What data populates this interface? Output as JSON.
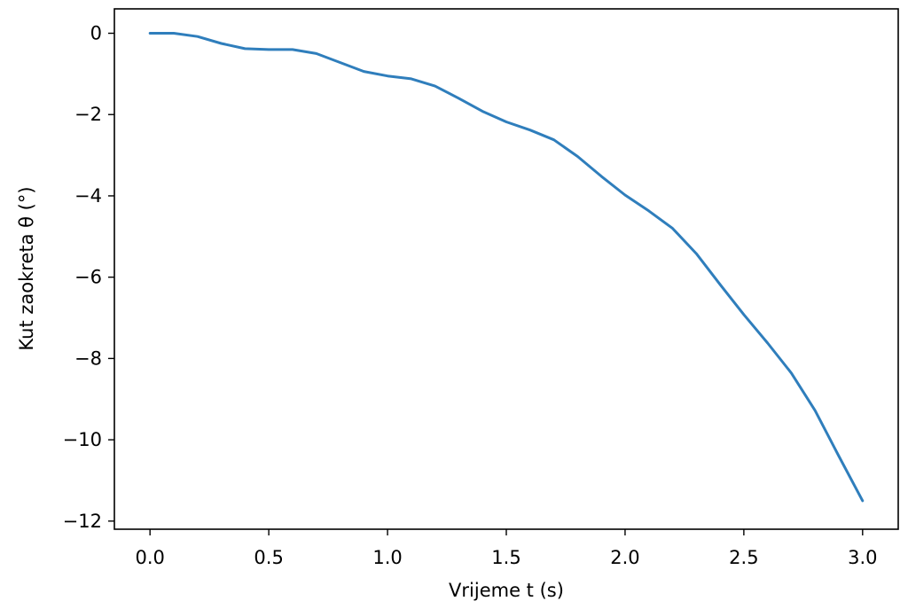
{
  "chart_data": {
    "type": "line",
    "title": "",
    "xlabel": "Vrijeme t (s)",
    "ylabel": "Kut zaokreta θ (°)",
    "xlim": [
      -0.15,
      3.15
    ],
    "ylim": [
      -12.2,
      0.6
    ],
    "grid": false,
    "legend": "none",
    "line_color": "#2f7ebc",
    "xticks": [
      0.0,
      0.5,
      1.0,
      1.5,
      2.0,
      2.5,
      3.0
    ],
    "xtick_labels": [
      "0.0",
      "0.5",
      "1.0",
      "1.5",
      "2.0",
      "2.5",
      "3.0"
    ],
    "yticks": [
      0,
      -2,
      -4,
      -6,
      -8,
      -10,
      -12
    ],
    "ytick_labels": [
      "0",
      "−2",
      "−4",
      "−6",
      "−8",
      "−10",
      "−12"
    ],
    "series": [
      {
        "x": [
          0.0,
          0.1,
          0.2,
          0.3,
          0.4,
          0.5,
          0.6,
          0.7,
          0.8,
          0.9,
          1.0,
          1.1,
          1.2,
          1.3,
          1.4,
          1.5,
          1.6,
          1.7,
          1.8,
          1.9,
          2.0,
          2.1,
          2.2,
          2.3,
          2.4,
          2.5,
          2.6,
          2.7,
          2.8,
          2.9,
          3.0
        ],
        "y": [
          0.0,
          0.0,
          -0.08,
          -0.25,
          -0.38,
          -0.4,
          -0.4,
          -0.5,
          -0.72,
          -0.94,
          -1.05,
          -1.12,
          -1.3,
          -1.6,
          -1.92,
          -2.18,
          -2.38,
          -2.62,
          -3.03,
          -3.52,
          -3.98,
          -4.37,
          -4.8,
          -5.42,
          -6.18,
          -6.92,
          -7.62,
          -8.36,
          -9.28,
          -10.4,
          -11.5
        ]
      }
    ]
  }
}
